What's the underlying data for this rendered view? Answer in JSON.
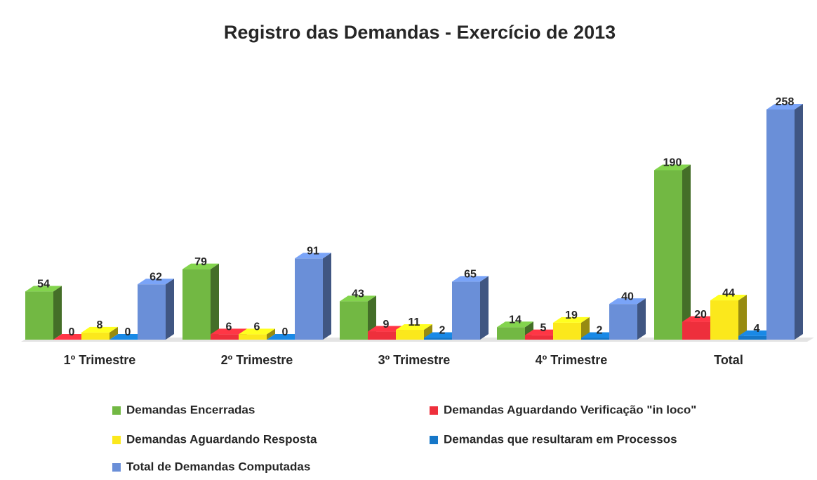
{
  "chart_data": {
    "type": "bar3d",
    "title": "Registro das Demandas - Exercício de 2013",
    "categories": [
      "1º Trimestre",
      "2º Trimestre",
      "3º Trimestre",
      "4º Trimestre",
      "Total"
    ],
    "series": [
      {
        "name": "Demandas Encerradas",
        "color": "#72b843",
        "values": [
          54,
          79,
          43,
          14,
          190
        ]
      },
      {
        "name": "Demandas Aguardando Verificação \"in loco\"",
        "color": "#ee2f3c",
        "values": [
          0,
          6,
          9,
          5,
          20
        ]
      },
      {
        "name": "Demandas Aguardando Resposta",
        "color": "#fbe81c",
        "values": [
          8,
          6,
          11,
          19,
          44
        ]
      },
      {
        "name": "Demandas que resultaram em Processos",
        "color": "#1677c8",
        "values": [
          0,
          0,
          2,
          2,
          4
        ]
      },
      {
        "name": "Total de Demandas Computadas",
        "color": "#6a8fd8",
        "values": [
          62,
          91,
          65,
          40,
          258
        ]
      }
    ],
    "legend": "bottom"
  }
}
